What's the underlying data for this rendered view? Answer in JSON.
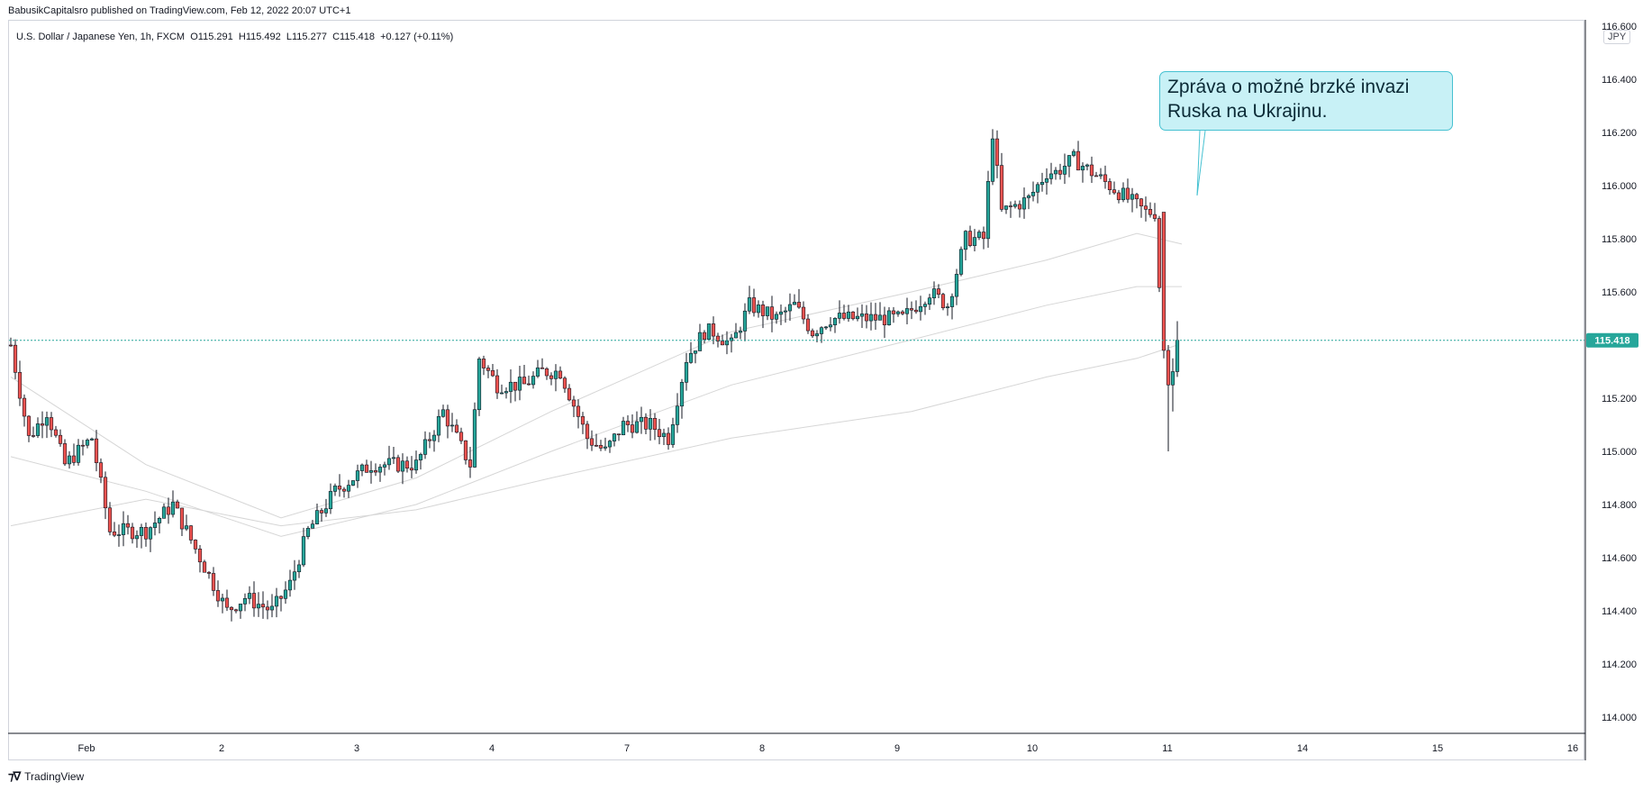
{
  "header": {
    "published": "BabusikCapitalsro published on TradingView.com, Feb 12, 2022 20:07 UTC+1"
  },
  "legend": {
    "symbol": "U.S. Dollar / Japanese Yen, 1h, FXCM",
    "open": "O115.291",
    "high": "H115.492",
    "low": "L115.277",
    "close": "C115.418",
    "change": "+0.127 (+0.11%)"
  },
  "currency": "JPY",
  "price_tag": "115.418",
  "callout": {
    "line1": "Zpráva o možné brzké invazi",
    "line2": "Ruska na Ukrajinu."
  },
  "footer": {
    "brand": "TradingView",
    "brand_icon": "tradingview-logo-icon"
  },
  "colors": {
    "up": "#26a69a",
    "down": "#ef5350",
    "wick": "#131722",
    "ma": "#d6d6d6",
    "price_line": "#26a69a",
    "callout_bg": "#c8f1f6",
    "callout_border": "#45c1d1"
  },
  "chart_data": {
    "type": "candlestick",
    "title": "",
    "ylim": [
      113.9,
      116.6
    ],
    "y_ticks": [
      "116.600",
      "116.400",
      "116.200",
      "116.000",
      "115.800",
      "115.600",
      "115.200",
      "115.000",
      "114.800",
      "114.600",
      "114.400",
      "114.200",
      "114.000"
    ],
    "x_ticks": [
      {
        "label": "Feb",
        "bar": 10
      },
      {
        "label": "2",
        "bar": 40
      },
      {
        "label": "3",
        "bar": 70
      },
      {
        "label": "4",
        "bar": 100
      },
      {
        "label": "7",
        "bar": 130
      },
      {
        "label": "8",
        "bar": 160
      },
      {
        "label": "9",
        "bar": 190
      },
      {
        "label": "10",
        "bar": 220
      },
      {
        "label": "11",
        "bar": 250
      },
      {
        "label": "14",
        "bar": 280
      },
      {
        "label": "15",
        "bar": 310
      },
      {
        "label": "16",
        "bar": 340
      }
    ],
    "last_price": 115.418,
    "grid": false,
    "waypoints": [
      [
        0,
        115.4
      ],
      [
        4,
        115.05
      ],
      [
        8,
        115.15
      ],
      [
        12,
        114.95
      ],
      [
        18,
        115.05
      ],
      [
        22,
        114.7
      ],
      [
        30,
        114.7
      ],
      [
        36,
        114.8
      ],
      [
        42,
        114.6
      ],
      [
        48,
        114.4
      ],
      [
        52,
        114.45
      ],
      [
        58,
        114.4
      ],
      [
        62,
        114.5
      ],
      [
        66,
        114.7
      ],
      [
        72,
        114.85
      ],
      [
        80,
        114.95
      ],
      [
        86,
        114.95
      ],
      [
        90,
        114.95
      ],
      [
        96,
        115.15
      ],
      [
        102,
        114.95
      ],
      [
        104,
        115.35
      ],
      [
        108,
        115.25
      ],
      [
        114,
        115.25
      ],
      [
        118,
        115.3
      ],
      [
        122,
        115.3
      ],
      [
        128,
        115.05
      ],
      [
        132,
        115.0
      ],
      [
        136,
        115.1
      ],
      [
        142,
        115.1
      ],
      [
        146,
        115.05
      ],
      [
        150,
        115.35
      ],
      [
        154,
        115.45
      ],
      [
        156,
        115.45
      ],
      [
        160,
        115.4
      ],
      [
        164,
        115.55
      ],
      [
        170,
        115.5
      ],
      [
        174,
        115.55
      ],
      [
        178,
        115.45
      ],
      [
        182,
        115.5
      ],
      [
        186,
        115.5
      ],
      [
        192,
        115.5
      ],
      [
        198,
        115.5
      ],
      [
        204,
        115.6
      ],
      [
        208,
        115.55
      ],
      [
        212,
        115.8
      ],
      [
        216,
        115.8
      ],
      [
        218,
        116.2
      ],
      [
        220,
        115.9
      ],
      [
        226,
        115.95
      ],
      [
        230,
        116.05
      ],
      [
        232,
        116.05
      ],
      [
        236,
        116.1
      ],
      [
        240,
        116.05
      ],
      [
        244,
        116.0
      ],
      [
        248,
        115.95
      ],
      [
        252,
        115.9
      ],
      [
        254,
        115.9
      ],
      [
        256,
        115.35
      ],
      [
        258,
        115.25
      ],
      [
        260,
        115.418
      ]
    ],
    "shock_bars": [
      {
        "bar": 256,
        "open": 115.9,
        "high": 115.9,
        "low": 115.35,
        "close": 115.38
      },
      {
        "bar": 257,
        "open": 115.38,
        "high": 115.4,
        "low": 115.0,
        "close": 115.25
      },
      {
        "bar": 258,
        "open": 115.25,
        "high": 115.35,
        "low": 115.15,
        "close": 115.3
      },
      {
        "bar": 259,
        "open": 115.3,
        "high": 115.49,
        "low": 115.28,
        "close": 115.418
      }
    ],
    "moving_averages": [
      {
        "values": [
          [
            0,
            114.72
          ],
          [
            30,
            114.82
          ],
          [
            60,
            114.72
          ],
          [
            90,
            114.78
          ],
          [
            120,
            114.9
          ],
          [
            160,
            115.05
          ],
          [
            200,
            115.15
          ],
          [
            230,
            115.28
          ],
          [
            250,
            115.35
          ],
          [
            259,
            115.4
          ]
        ]
      },
      {
        "values": [
          [
            0,
            114.98
          ],
          [
            30,
            114.85
          ],
          [
            60,
            114.68
          ],
          [
            90,
            114.8
          ],
          [
            120,
            115.0
          ],
          [
            160,
            115.25
          ],
          [
            200,
            115.42
          ],
          [
            230,
            115.55
          ],
          [
            250,
            115.62
          ],
          [
            260,
            115.62
          ]
        ]
      },
      {
        "values": [
          [
            0,
            115.28
          ],
          [
            30,
            114.95
          ],
          [
            60,
            114.75
          ],
          [
            90,
            114.9
          ],
          [
            120,
            115.15
          ],
          [
            160,
            115.45
          ],
          [
            200,
            115.6
          ],
          [
            230,
            115.72
          ],
          [
            250,
            115.82
          ],
          [
            260,
            115.78
          ]
        ]
      }
    ]
  }
}
